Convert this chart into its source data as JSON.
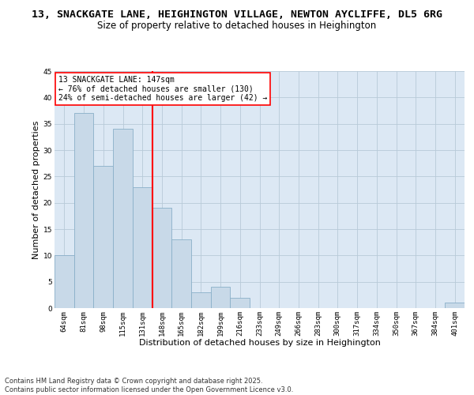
{
  "title_line1": "13, SNACKGATE LANE, HEIGHINGTON VILLAGE, NEWTON AYCLIFFE, DL5 6RG",
  "title_line2": "Size of property relative to detached houses in Heighington",
  "xlabel": "Distribution of detached houses by size in Heighington",
  "ylabel": "Number of detached properties",
  "bar_labels": [
    "64sqm",
    "81sqm",
    "98sqm",
    "115sqm",
    "131sqm",
    "148sqm",
    "165sqm",
    "182sqm",
    "199sqm",
    "216sqm",
    "233sqm",
    "249sqm",
    "266sqm",
    "283sqm",
    "300sqm",
    "317sqm",
    "334sqm",
    "350sqm",
    "367sqm",
    "384sqm",
    "401sqm"
  ],
  "bar_values": [
    10,
    37,
    27,
    34,
    23,
    19,
    13,
    3,
    4,
    2,
    0,
    0,
    0,
    0,
    0,
    0,
    0,
    0,
    0,
    0,
    1
  ],
  "bar_color": "#c8d9e8",
  "bar_edge_color": "#8aafc8",
  "bg_color": "#dce8f4",
  "grid_color": "#b8cad8",
  "vline_color": "red",
  "annotation_text": "13 SNACKGATE LANE: 147sqm\n← 76% of detached houses are smaller (130)\n24% of semi-detached houses are larger (42) →",
  "ylim": [
    0,
    45
  ],
  "yticks": [
    0,
    5,
    10,
    15,
    20,
    25,
    30,
    35,
    40,
    45
  ],
  "footer_text": "Contains HM Land Registry data © Crown copyright and database right 2025.\nContains public sector information licensed under the Open Government Licence v3.0.",
  "title_fontsize": 9.5,
  "subtitle_fontsize": 8.5,
  "axis_label_fontsize": 8,
  "tick_fontsize": 6.5,
  "annotation_fontsize": 7,
  "footer_fontsize": 6
}
